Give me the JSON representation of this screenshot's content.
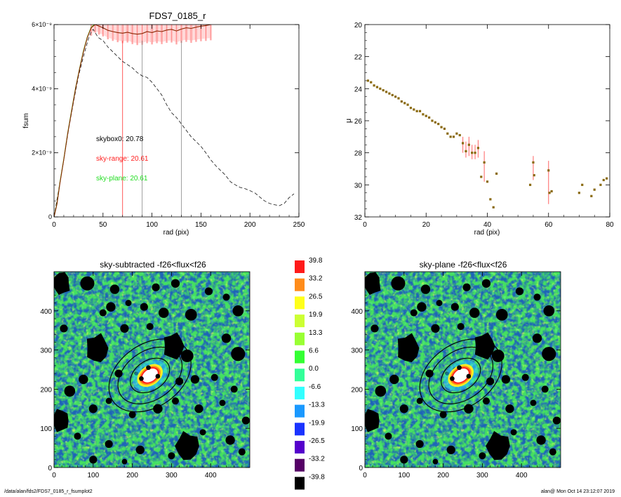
{
  "footer": {
    "path": "/data/alan/fds2/FDS7_0185_r_fsumplot2",
    "timestamp": "alan@  Mon Oct 14 23:12:07 2019"
  },
  "colors": {
    "fsum_line": "#8b2500",
    "error_band": "#ff9a9a",
    "median_line": "#111111",
    "green_line": "#66cc33",
    "red_marker": "#ff3333",
    "grey_marker": "#888888",
    "sky_red": "#ff2020",
    "sky_green": "#22dd22",
    "mu_point": "#8a6a10",
    "mu_error": "#ff7070"
  },
  "chart_data": [
    {
      "id": "fsum",
      "type": "line",
      "title": "FDS7_0185_r",
      "xlabel": "rad (pix)",
      "ylabel": "fsum",
      "xlim": [
        0,
        250
      ],
      "ylim": [
        0,
        6e-09
      ],
      "xticks": [
        0,
        50,
        100,
        150,
        200,
        250
      ],
      "yticks": [
        {
          "v": 0,
          "label": "0"
        },
        {
          "v": 2e-09,
          "label": "2×10⁻⁹"
        },
        {
          "v": 4e-09,
          "label": "4×10⁻⁹"
        },
        {
          "v": 6e-09,
          "label": "6×10⁻⁹"
        }
      ],
      "series": [
        {
          "key": "fsum_sky",
          "x": [
            0,
            3,
            6,
            10,
            14,
            18,
            22,
            26,
            30,
            34,
            38,
            42,
            46,
            50,
            55,
            60,
            65,
            70,
            75,
            80,
            85,
            90,
            95,
            100,
            105,
            110,
            115,
            120,
            125,
            130,
            135,
            140,
            145,
            150,
            155,
            160
          ],
          "y": [
            0,
            4e-10,
            1.05e-09,
            1.8e-09,
            2.6e-09,
            3.3e-09,
            4e-09,
            4.6e-09,
            5.15e-09,
            5.6e-09,
            5.9e-09,
            6e-09,
            5.95e-09,
            5.9e-09,
            5.82e-09,
            5.78e-09,
            5.75e-09,
            5.73e-09,
            5.76e-09,
            5.72e-09,
            5.7e-09,
            5.72e-09,
            5.78e-09,
            5.75e-09,
            5.8e-09,
            5.78e-09,
            5.83e-09,
            5.85e-09,
            5.8e-09,
            5.86e-09,
            5.9e-09,
            5.88e-09,
            5.92e-09,
            5.95e-09,
            5.97e-09,
            6e-09
          ]
        },
        {
          "key": "fsum_plane",
          "x": [
            0,
            3,
            6,
            10,
            14,
            18,
            22,
            26,
            30,
            34,
            38,
            41
          ],
          "y": [
            0,
            4.2e-10,
            1.08e-09,
            1.82e-09,
            2.62e-09,
            3.33e-09,
            4.02e-09,
            4.62e-09,
            5.18e-09,
            5.62e-09,
            5.92e-09,
            6e-09
          ]
        },
        {
          "key": "fsum_raw",
          "x": [
            0,
            5,
            10,
            15,
            20,
            25,
            30,
            35,
            38,
            40,
            45,
            50,
            55,
            60,
            65,
            70,
            75,
            80,
            85,
            90,
            95,
            100,
            105,
            110,
            115,
            120,
            125,
            130,
            135,
            140,
            145,
            150,
            155,
            160,
            165,
            170,
            175,
            180,
            185,
            190,
            195,
            200,
            205,
            210,
            215,
            220,
            225,
            230,
            235,
            240,
            245
          ],
          "y": [
            0,
            9e-10,
            1.8e-09,
            2.75e-09,
            3.6e-09,
            4.4e-09,
            5e-09,
            5.55e-09,
            5.78e-09,
            5.85e-09,
            5.6e-09,
            5.5e-09,
            5.3e-09,
            5.15e-09,
            5e-09,
            4.85e-09,
            4.75e-09,
            4.65e-09,
            4.5e-09,
            4.4e-09,
            4.35e-09,
            4.2e-09,
            4e-09,
            3.8e-09,
            3.5e-09,
            3.25e-09,
            3.1e-09,
            2.9e-09,
            2.7e-09,
            2.5e-09,
            2.35e-09,
            2.2e-09,
            2e-09,
            1.78e-09,
            1.6e-09,
            1.45e-09,
            1.3e-09,
            1.1e-09,
            1e-09,
            9.2e-10,
            8.8e-10,
            8.2e-10,
            7.5e-10,
            6.2e-10,
            5e-10,
            4.2e-10,
            3.8e-10,
            3.5e-10,
            4.2e-10,
            6e-10,
            7.2e-10
          ]
        }
      ],
      "vlines": [
        {
          "x": 70,
          "color": "red"
        },
        {
          "x": 90,
          "color": "grey"
        },
        {
          "x": 130,
          "color": "grey"
        }
      ],
      "annotations": [
        {
          "text": "skybox0: 20.78",
          "color": "black"
        },
        {
          "text": "sky-range: 20.61",
          "color": "red"
        },
        {
          "text": "sky-plane: 20.61",
          "color": "green"
        }
      ]
    },
    {
      "id": "mu",
      "type": "scatter",
      "title": "",
      "xlabel": "rad (pix)",
      "ylabel": "μ",
      "xlim": [
        0,
        80
      ],
      "ylim": [
        20,
        32
      ],
      "y_inverted": true,
      "xticks": [
        0,
        20,
        40,
        60,
        80
      ],
      "yticks": [
        20,
        22,
        24,
        26,
        28,
        30,
        32
      ],
      "points": [
        {
          "x": 1,
          "y": 23.5
        },
        {
          "x": 2,
          "y": 23.6
        },
        {
          "x": 3,
          "y": 23.8
        },
        {
          "x": 4,
          "y": 23.9
        },
        {
          "x": 5,
          "y": 24.0
        },
        {
          "x": 6,
          "y": 24.1
        },
        {
          "x": 7,
          "y": 24.2
        },
        {
          "x": 8,
          "y": 24.3
        },
        {
          "x": 9,
          "y": 24.4
        },
        {
          "x": 10,
          "y": 24.5
        },
        {
          "x": 11,
          "y": 24.6
        },
        {
          "x": 12,
          "y": 24.8
        },
        {
          "x": 13,
          "y": 24.9
        },
        {
          "x": 14,
          "y": 25.0
        },
        {
          "x": 15,
          "y": 25.2
        },
        {
          "x": 16,
          "y": 25.3
        },
        {
          "x": 17,
          "y": 25.4
        },
        {
          "x": 18,
          "y": 25.4
        },
        {
          "x": 19,
          "y": 25.6
        },
        {
          "x": 20,
          "y": 25.7
        },
        {
          "x": 21,
          "y": 25.8
        },
        {
          "x": 22,
          "y": 26.0
        },
        {
          "x": 23,
          "y": 26.1
        },
        {
          "x": 24,
          "y": 26.2
        },
        {
          "x": 25,
          "y": 26.4
        },
        {
          "x": 26,
          "y": 26.5
        },
        {
          "x": 27,
          "y": 26.8
        },
        {
          "x": 28,
          "y": 27.0
        },
        {
          "x": 29,
          "y": 27.0
        },
        {
          "x": 30,
          "y": 26.8
        },
        {
          "x": 31,
          "y": 26.9
        },
        {
          "x": 32,
          "y": 27.4
        },
        {
          "x": 33,
          "y": 27.9
        },
        {
          "x": 34,
          "y": 27.5
        },
        {
          "x": 35,
          "y": 28.0
        },
        {
          "x": 36,
          "y": 28.0
        },
        {
          "x": 37,
          "y": 27.7
        },
        {
          "x": 38,
          "y": 29.5
        },
        {
          "x": 39,
          "y": 28.6
        },
        {
          "x": 40,
          "y": 29.8
        },
        {
          "x": 41,
          "y": 30.9
        },
        {
          "x": 42,
          "y": 31.4
        },
        {
          "x": 43,
          "y": 29.3
        },
        {
          "x": 54,
          "y": 30.0
        },
        {
          "x": 55,
          "y": 28.6
        },
        {
          "x": 55.3,
          "y": 29.4
        },
        {
          "x": 60,
          "y": 29.1
        },
        {
          "x": 60.3,
          "y": 30.5
        },
        {
          "x": 61,
          "y": 30.4
        },
        {
          "x": 70,
          "y": 30.5
        },
        {
          "x": 71,
          "y": 30.0
        },
        {
          "x": 74,
          "y": 30.7
        },
        {
          "x": 75,
          "y": 30.3
        },
        {
          "x": 77,
          "y": 30.0
        },
        {
          "x": 78,
          "y": 29.7
        },
        {
          "x": 79,
          "y": 29.6
        }
      ],
      "errorbars": [
        {
          "x": 32,
          "lo": 27.0,
          "hi": 28.0
        },
        {
          "x": 33,
          "lo": 27.3,
          "hi": 28.3
        },
        {
          "x": 34,
          "lo": 27.0,
          "hi": 28.2
        },
        {
          "x": 35,
          "lo": 27.5,
          "hi": 28.4
        },
        {
          "x": 36,
          "lo": 27.5,
          "hi": 28.4
        },
        {
          "x": 37,
          "lo": 27.2,
          "hi": 28.3
        },
        {
          "x": 39,
          "lo": 27.9,
          "hi": 29.8
        },
        {
          "x": 55,
          "lo": 28.2,
          "hi": 29.7
        },
        {
          "x": 60,
          "lo": 28.5,
          "hi": 31.2
        }
      ]
    },
    {
      "id": "sky_subtracted",
      "type": "heatmap",
      "title": "sky-subtracted -f26<flux<f26",
      "xlim": [
        0,
        500
      ],
      "ylim": [
        0,
        500
      ],
      "xticks": [
        0,
        100,
        200,
        300,
        400
      ],
      "yticks": [
        0,
        100,
        200,
        300,
        400
      ],
      "galaxy_center": [
        245,
        235
      ],
      "ellipses": [
        {
          "a": 115,
          "b": 80,
          "angle": -35
        },
        {
          "a": 90,
          "b": 62,
          "angle": -35
        },
        {
          "a": 55,
          "b": 38,
          "angle": -35
        }
      ],
      "masks": [
        [
          20,
          470,
          22
        ],
        [
          85,
          470,
          18
        ],
        [
          155,
          455,
          12
        ],
        [
          260,
          460,
          10
        ],
        [
          310,
          470,
          11
        ],
        [
          395,
          450,
          10
        ],
        [
          440,
          435,
          9
        ],
        [
          470,
          400,
          14
        ],
        [
          125,
          395,
          9
        ],
        [
          145,
          410,
          12
        ],
        [
          190,
          420,
          8
        ],
        [
          230,
          410,
          10
        ],
        [
          280,
          395,
          13
        ],
        [
          350,
          390,
          15
        ],
        [
          25,
          355,
          10
        ],
        [
          110,
          305,
          28
        ],
        [
          180,
          355,
          11
        ],
        [
          245,
          360,
          9
        ],
        [
          305,
          310,
          26
        ],
        [
          340,
          285,
          16
        ],
        [
          440,
          330,
          12
        ],
        [
          470,
          290,
          18
        ],
        [
          75,
          225,
          12
        ],
        [
          165,
          240,
          10
        ],
        [
          230,
          250,
          6
        ],
        [
          210,
          240,
          5
        ],
        [
          255,
          245,
          6
        ],
        [
          320,
          220,
          10
        ],
        [
          360,
          225,
          11
        ],
        [
          410,
          230,
          9
        ],
        [
          460,
          200,
          9
        ],
        [
          40,
          195,
          14
        ],
        [
          15,
          120,
          22
        ],
        [
          100,
          150,
          11
        ],
        [
          140,
          170,
          8
        ],
        [
          200,
          135,
          9
        ],
        [
          265,
          150,
          12
        ],
        [
          310,
          170,
          9
        ],
        [
          370,
          150,
          11
        ],
        [
          430,
          165,
          8
        ],
        [
          490,
          120,
          10
        ],
        [
          60,
          80,
          9
        ],
        [
          140,
          60,
          10
        ],
        [
          220,
          45,
          11
        ],
        [
          300,
          30,
          9
        ],
        [
          340,
          55,
          28
        ],
        [
          380,
          90,
          8
        ],
        [
          450,
          70,
          12
        ],
        [
          480,
          40,
          9
        ],
        [
          100,
          20,
          10
        ],
        [
          180,
          15,
          7
        ]
      ]
    },
    {
      "id": "sky_plane",
      "type": "heatmap",
      "title": "sky-plane -f26<flux<f26",
      "xlim": [
        0,
        500
      ],
      "ylim": [
        0,
        500
      ],
      "xticks": [
        0,
        100,
        200,
        300,
        400
      ],
      "yticks": [
        0,
        100,
        200,
        300,
        400
      ]
    },
    {
      "id": "colorbar",
      "type": "colorbar",
      "levels": [
        {
          "label": "39.8",
          "color": "#ff1a1a"
        },
        {
          "label": "33.2",
          "color": "#ff8c1a"
        },
        {
          "label": "26.5",
          "color": "#ffff1a"
        },
        {
          "label": "19.9",
          "color": "#ccff33"
        },
        {
          "label": "13.3",
          "color": "#99ff33"
        },
        {
          "label": "6.6",
          "color": "#33ff33"
        },
        {
          "label": "0.0",
          "color": "#33ff99"
        },
        {
          "label": "-6.6",
          "color": "#33ffff"
        },
        {
          "label": "-13.3",
          "color": "#1a99ff"
        },
        {
          "label": "-19.9",
          "color": "#1a33ff"
        },
        {
          "label": "-26.5",
          "color": "#5500cc"
        },
        {
          "label": "-33.2",
          "color": "#550066"
        },
        {
          "label": "-39.8",
          "color": "#000000"
        }
      ]
    }
  ]
}
